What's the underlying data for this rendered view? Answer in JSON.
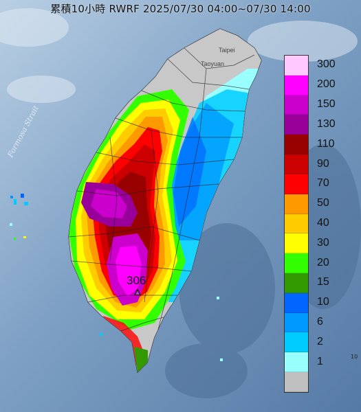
{
  "title": "累積10小時 RWRF 2025/07/30 04:00~07/30 14:00",
  "labels": {
    "strait": "Formosa Strait",
    "taipei": "Taipei",
    "taoyuan": "Taoyuan",
    "max_value": "306"
  },
  "legend": {
    "colors": [
      "#ffc8ff",
      "#ff00ff",
      "#cc00cc",
      "#990099",
      "#990000",
      "#cc0000",
      "#ff0000",
      "#ff9900",
      "#ffcc00",
      "#ffff00",
      "#33ff00",
      "#339900",
      "#0066ff",
      "#0099ff",
      "#00ccff",
      "#99ffff",
      "#c0c0c0"
    ],
    "labels": [
      "300",
      "200",
      "150",
      "130",
      "110",
      "90",
      "70",
      "50",
      "40",
      "30",
      "20",
      "15",
      "10",
      "6",
      "2",
      "1",
      ""
    ]
  },
  "edge_text": "10"
}
